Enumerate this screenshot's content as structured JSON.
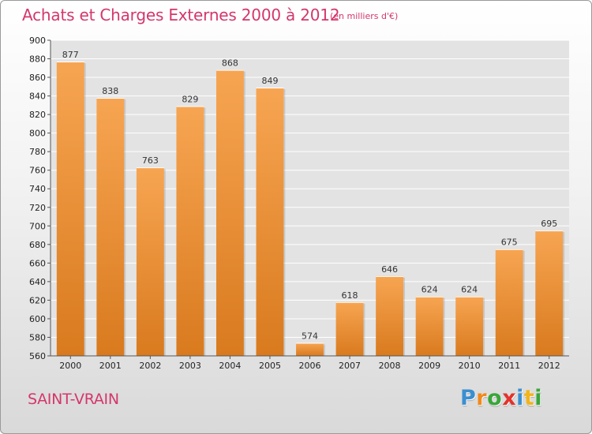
{
  "header": {
    "title": "Achats et Charges Externes 2000 à 2012",
    "unit": "(en milliers d'€)"
  },
  "footer": {
    "place": "SAINT-VRAIN",
    "logo_letters": [
      "P",
      "r",
      "o",
      "x",
      "i",
      "t",
      "i"
    ],
    "logo_colors": [
      "#3a8fd0",
      "#f08a1c",
      "#3aa63a",
      "#e2332c",
      "#3a8fd0",
      "#f0b41c",
      "#3aa63a"
    ]
  },
  "colors": {
    "accent": "#d4376a",
    "bar_light": "#f7a552",
    "bar_dark": "#d97a1e"
  },
  "chart_data": {
    "type": "bar",
    "title": "Achats et Charges Externes 2000 à 2012",
    "xlabel": "",
    "ylabel": "",
    "categories": [
      "2000",
      "2001",
      "2002",
      "2003",
      "2004",
      "2005",
      "2006",
      "2007",
      "2008",
      "2009",
      "2010",
      "2011",
      "2012"
    ],
    "values": [
      877,
      838,
      763,
      829,
      868,
      849,
      574,
      618,
      646,
      624,
      624,
      675,
      695
    ],
    "ylim": [
      560,
      900
    ],
    "yticks": [
      560,
      580,
      600,
      620,
      640,
      660,
      680,
      700,
      720,
      740,
      760,
      780,
      800,
      820,
      840,
      860,
      880,
      900
    ],
    "grid": true,
    "data_labels": true
  }
}
